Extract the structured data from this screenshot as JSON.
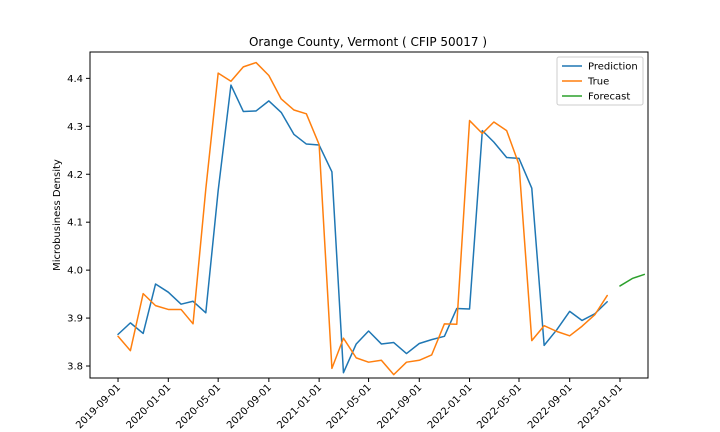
{
  "chart_data": {
    "type": "line",
    "title": "Orange County, Vermont ( CFIP 50017 )",
    "xlabel": "",
    "ylabel": "Microbusiness Density",
    "x_tick_labels": [
      "2019-09-01",
      "2020-01-01",
      "2020-05-01",
      "2020-09-01",
      "2021-01-01",
      "2021-05-01",
      "2021-09-01",
      "2022-01-01",
      "2022-05-01",
      "2022-09-01",
      "2023-01-01"
    ],
    "y_tick_labels": [
      "3.8",
      "3.9",
      "4.0",
      "4.1",
      "4.2",
      "4.3",
      "4.4"
    ],
    "ylim": [
      3.775,
      4.455
    ],
    "xlim": [
      "2019-06-25",
      "2023-03-10"
    ],
    "grid": false,
    "legend_position": "top-right",
    "series": [
      {
        "name": "Prediction",
        "color": "#1f77b4",
        "points": [
          [
            "2019-09-01",
            3.866
          ],
          [
            "2019-10-01",
            3.89
          ],
          [
            "2019-11-01",
            3.868
          ],
          [
            "2019-12-01",
            3.971
          ],
          [
            "2020-01-01",
            3.954
          ],
          [
            "2020-02-01",
            3.929
          ],
          [
            "2020-03-01",
            3.935
          ],
          [
            "2020-04-01",
            3.911
          ],
          [
            "2020-05-01",
            4.166
          ],
          [
            "2020-06-01",
            4.386
          ],
          [
            "2020-07-01",
            4.331
          ],
          [
            "2020-08-01",
            4.332
          ],
          [
            "2020-09-01",
            4.353
          ],
          [
            "2020-10-01",
            4.329
          ],
          [
            "2020-11-01",
            4.283
          ],
          [
            "2020-12-01",
            4.263
          ],
          [
            "2021-01-01",
            4.261
          ],
          [
            "2021-02-01",
            4.205
          ],
          [
            "2021-03-01",
            3.786
          ],
          [
            "2021-04-01",
            3.846
          ],
          [
            "2021-05-01",
            3.873
          ],
          [
            "2021-06-01",
            3.846
          ],
          [
            "2021-07-01",
            3.849
          ],
          [
            "2021-08-01",
            3.826
          ],
          [
            "2021-09-01",
            3.847
          ],
          [
            "2021-10-01",
            3.855
          ],
          [
            "2021-11-01",
            3.862
          ],
          [
            "2021-12-01",
            3.92
          ],
          [
            "2022-01-01",
            3.919
          ],
          [
            "2022-02-01",
            4.291
          ],
          [
            "2022-03-01",
            4.267
          ],
          [
            "2022-04-01",
            4.235
          ],
          [
            "2022-05-01",
            4.233
          ],
          [
            "2022-06-01",
            4.171
          ],
          [
            "2022-07-01",
            3.843
          ],
          [
            "2022-08-01",
            3.876
          ],
          [
            "2022-09-01",
            3.914
          ],
          [
            "2022-10-01",
            3.895
          ],
          [
            "2022-11-01",
            3.909
          ],
          [
            "2022-12-01",
            3.934
          ]
        ]
      },
      {
        "name": "True",
        "color": "#ff7f0e",
        "points": [
          [
            "2019-09-01",
            3.862
          ],
          [
            "2019-10-01",
            3.832
          ],
          [
            "2019-11-01",
            3.951
          ],
          [
            "2019-12-01",
            3.926
          ],
          [
            "2020-01-01",
            3.918
          ],
          [
            "2020-02-01",
            3.918
          ],
          [
            "2020-03-01",
            3.888
          ],
          [
            "2020-04-01",
            4.169
          ],
          [
            "2020-05-01",
            4.411
          ],
          [
            "2020-06-01",
            4.394
          ],
          [
            "2020-07-01",
            4.424
          ],
          [
            "2020-08-01",
            4.433
          ],
          [
            "2020-09-01",
            4.406
          ],
          [
            "2020-10-01",
            4.357
          ],
          [
            "2020-11-01",
            4.334
          ],
          [
            "2020-12-01",
            4.326
          ],
          [
            "2021-01-01",
            4.262
          ],
          [
            "2021-02-01",
            3.795
          ],
          [
            "2021-03-01",
            3.858
          ],
          [
            "2021-04-01",
            3.817
          ],
          [
            "2021-05-01",
            3.808
          ],
          [
            "2021-06-01",
            3.812
          ],
          [
            "2021-07-01",
            3.782
          ],
          [
            "2021-08-01",
            3.808
          ],
          [
            "2021-09-01",
            3.812
          ],
          [
            "2021-10-01",
            3.823
          ],
          [
            "2021-11-01",
            3.888
          ],
          [
            "2021-12-01",
            3.887
          ],
          [
            "2022-01-01",
            4.312
          ],
          [
            "2022-02-01",
            4.285
          ],
          [
            "2022-03-01",
            4.309
          ],
          [
            "2022-04-01",
            4.291
          ],
          [
            "2022-05-01",
            4.22
          ],
          [
            "2022-06-01",
            3.853
          ],
          [
            "2022-07-01",
            3.884
          ],
          [
            "2022-08-01",
            3.872
          ],
          [
            "2022-09-01",
            3.863
          ],
          [
            "2022-10-01",
            3.883
          ],
          [
            "2022-11-01",
            3.907
          ],
          [
            "2022-12-01",
            3.947
          ]
        ]
      },
      {
        "name": "Forecast",
        "color": "#2ca02c",
        "points": [
          [
            "2023-01-01",
            3.967
          ],
          [
            "2023-02-01",
            3.983
          ],
          [
            "2023-03-01",
            3.991
          ]
        ]
      }
    ]
  }
}
